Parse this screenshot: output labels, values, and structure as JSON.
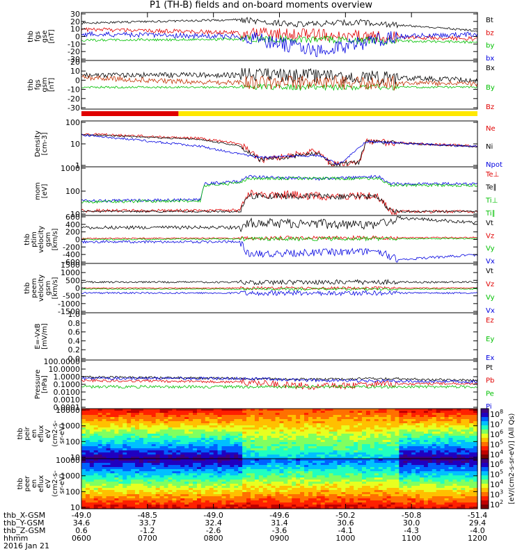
{
  "title": "P1 (TH-B) fields and on-board moments overview",
  "chart_data": {
    "type": "line",
    "panels": [
      {
        "id": "fgs_gse",
        "ylabel": [
          "thb",
          "fgs",
          "gse",
          "[nT]"
        ],
        "ticks": [
          "30",
          "20",
          "10",
          "0",
          "-10",
          "-20",
          "-30"
        ],
        "legend": [
          {
            "text": "Bt",
            "color": "#000000"
          },
          {
            "text": "bz",
            "color": "#e00000"
          },
          {
            "text": "by",
            "color": "#00c000"
          },
          {
            "text": "bx",
            "color": "#0000e0"
          }
        ]
      },
      {
        "id": "fgs_gsm",
        "ylabel": [
          "thb",
          "fgs",
          "gsm",
          "[nT]"
        ],
        "ticks": [
          "20",
          "10",
          "0",
          "-10",
          "-20",
          "-30"
        ],
        "legend": [
          {
            "text": "Bx",
            "color": "#000000"
          },
          {
            "text": "By",
            "color": "#00c000"
          },
          {
            "text": "Bz",
            "color": "#e00000"
          }
        ]
      },
      {
        "id": "density",
        "ylabel": [
          "Density",
          "[cm-3]"
        ],
        "ticks": [
          "100",
          "10",
          "1"
        ],
        "legend": [
          {
            "text": "Ne",
            "color": "#e00000"
          },
          {
            "text": "Ni",
            "color": "#000000"
          },
          {
            "text": "Npot",
            "color": "#0000e0"
          }
        ]
      },
      {
        "id": "temp",
        "ylabel": [
          "mom",
          "[eV]"
        ],
        "ticks": [
          "1000",
          "100",
          "10"
        ],
        "legend": [
          {
            "text": "Te⊥",
            "color": "#e00000"
          },
          {
            "text": "Te∥",
            "color": "#000000"
          },
          {
            "text": "Ti⊥",
            "color": "#00c000"
          },
          {
            "text": "Ti∥",
            "color": "#00c000"
          }
        ]
      },
      {
        "id": "ptim_v",
        "ylabel": [
          "thb",
          "ptim",
          "velocity",
          "gsm",
          "[km/s]"
        ],
        "ticks": [
          "600",
          "400",
          "200",
          "0",
          "-200",
          "-400",
          "-600"
        ],
        "legend": [
          {
            "text": "Vt",
            "color": "#000000"
          },
          {
            "text": "Vz",
            "color": "#e00000"
          },
          {
            "text": "Vy",
            "color": "#00c000"
          },
          {
            "text": "Vx",
            "color": "#0000e0"
          }
        ]
      },
      {
        "id": "peem_v",
        "ylabel": [
          "thb",
          "peem",
          "velocity",
          "gsm",
          "[km/s]"
        ],
        "ticks": [
          "1500",
          "1000",
          "500",
          "0",
          "-500",
          "-1000",
          "-1500"
        ],
        "legend": [
          {
            "text": "Vt",
            "color": "#000000"
          },
          {
            "text": "Vz",
            "color": "#e00000"
          },
          {
            "text": "Vy",
            "color": "#00c000"
          },
          {
            "text": "Vx",
            "color": "#0000e0"
          }
        ]
      },
      {
        "id": "efield",
        "ylabel": [
          "E=-VxB",
          "[mV/m]"
        ],
        "ticks": [
          "1.0",
          "0.8",
          "0.6",
          "0.4",
          "0.2",
          "0.0"
        ],
        "legend": [
          {
            "text": "Ez",
            "color": "#e00000"
          },
          {
            "text": "Ey",
            "color": "#00c000"
          },
          {
            "text": "Ex",
            "color": "#0000e0"
          }
        ]
      },
      {
        "id": "pressure",
        "ylabel": [
          "Pressure",
          "[nPa]"
        ],
        "ticks": [
          "100.0000",
          "10.0000",
          "1.0000",
          "0.1000",
          "0.0100",
          "0.0010",
          "0.0001"
        ],
        "legend": [
          {
            "text": "Pt",
            "color": "#000000"
          },
          {
            "text": "Pb",
            "color": "#e00000"
          },
          {
            "text": "Pe",
            "color": "#00c000"
          },
          {
            "text": "Pi",
            "color": "#0000e0"
          }
        ]
      },
      {
        "id": "peir",
        "ylabel": [
          "thb",
          "peir",
          "en",
          "eflux",
          "eV",
          "(cm2-s-",
          "sr-eV)"
        ],
        "ticks": [
          "10000",
          "1000",
          "100",
          "10"
        ]
      },
      {
        "id": "peer",
        "ylabel": [
          "thb",
          "peer",
          "en",
          "eflux",
          "eV",
          "(cm2-s-",
          "sr-eV)"
        ],
        "ticks": [
          "10000",
          "1000",
          "100",
          "10"
        ]
      }
    ],
    "colorbar": {
      "label": "[eV/(cm2-s-sr-eV)] (All Qs)",
      "ticks_top": [
        "10",
        "10",
        "10",
        "10",
        "10"
      ],
      "ticks_exp_top": [
        "8",
        "7",
        "6",
        "5",
        "4"
      ],
      "ticks_bottom": [
        "10",
        "10",
        "10",
        "10",
        "10"
      ],
      "ticks_exp_bottom": [
        "6",
        "5",
        "4",
        "3",
        "2"
      ]
    },
    "mode_bar": {
      "segments": [
        {
          "color": "#e00000",
          "from": 0.0,
          "to": 0.245
        },
        {
          "color": "#ffe800",
          "from": 0.245,
          "to": 1.0
        }
      ]
    },
    "xaxis": {
      "rows": [
        {
          "label": "thb_X-GSM",
          "values": [
            "-49.0",
            "-48.5",
            "-49.0",
            "-49.6",
            "-50.2",
            "-50.8",
            "-51.4"
          ]
        },
        {
          "label": "thb_Y-GSM",
          "values": [
            "34.6",
            "33.7",
            "32.4",
            "31.4",
            "30.6",
            "30.0",
            "29.4"
          ]
        },
        {
          "label": "thb_Z-GSM",
          "values": [
            "0.6",
            "-1.2",
            "-2.6",
            "-3.6",
            "-4.1",
            "-4.3",
            "-4.0"
          ]
        },
        {
          "label": "hhmm",
          "values": [
            "0600",
            "0700",
            "0800",
            "0900",
            "1000",
            "1100",
            "1200"
          ]
        }
      ],
      "date": "2016 Jan 21"
    }
  }
}
